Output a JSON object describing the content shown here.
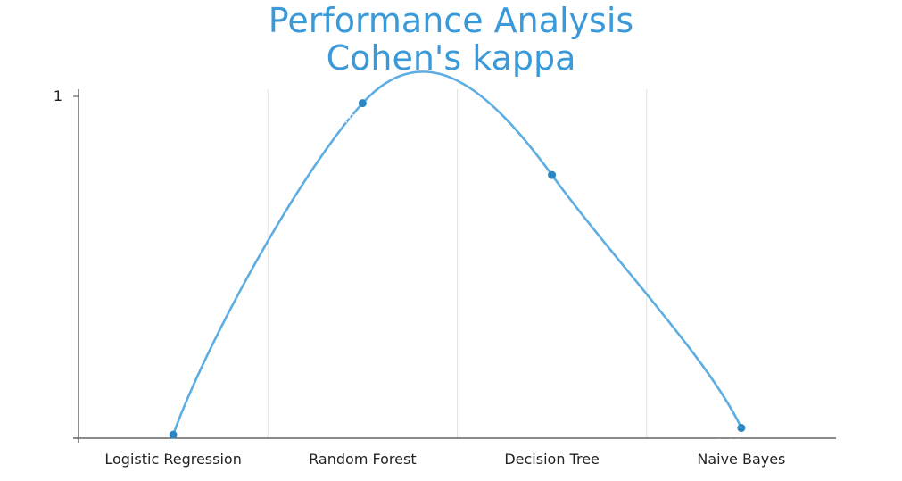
{
  "chart_data": {
    "type": "line",
    "title": "Performance Analysis",
    "subtitle": "Cohen's kappa",
    "xlabel": "",
    "ylabel": "",
    "categories": [
      "Logistic Regression",
      "Random Forest",
      "Decision Tree",
      "Naive Bayes"
    ],
    "series": [
      {
        "values": [
          0.01,
          0.98,
          0.77,
          0.03
        ],
        "color": "#5dade2",
        "marker_color": "#2e86c1"
      }
    ],
    "ylim": [
      0,
      1
    ],
    "yticks": [
      1
    ],
    "ytick_labels": [
      "1"
    ],
    "smooth": true,
    "grid": "vertical",
    "legend": "none"
  }
}
